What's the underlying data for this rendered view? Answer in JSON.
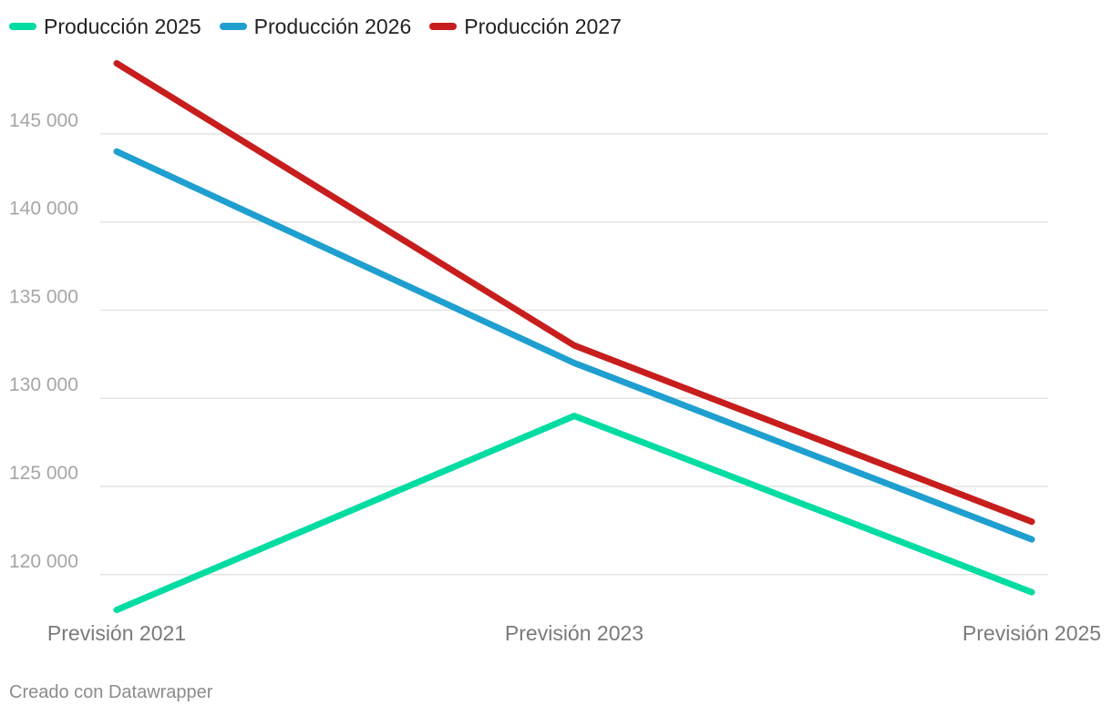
{
  "chart_data": {
    "type": "line",
    "categories": [
      "Previsión 2021",
      "Previsión 2023",
      "Previsión 2025"
    ],
    "series": [
      {
        "name": "Producción 2025",
        "color": "#00dca2",
        "values": [
          118000,
          129000,
          119000
        ]
      },
      {
        "name": "Producción 2026",
        "color": "#1f9fd0",
        "values": [
          144000,
          132000,
          122000
        ]
      },
      {
        "name": "Producción 2027",
        "color": "#c71e1d",
        "values": [
          149000,
          133000,
          123000
        ]
      }
    ],
    "y_ticks": [
      120000,
      125000,
      130000,
      135000,
      140000,
      145000
    ],
    "y_tick_labels": [
      "120 000",
      "125 000",
      "130 000",
      "135 000",
      "140 000",
      "145 000"
    ],
    "ylim": [
      118000,
      149000
    ],
    "grid": true,
    "legend": "top-left"
  },
  "footer": {
    "credit": "Creado con Datawrapper"
  }
}
